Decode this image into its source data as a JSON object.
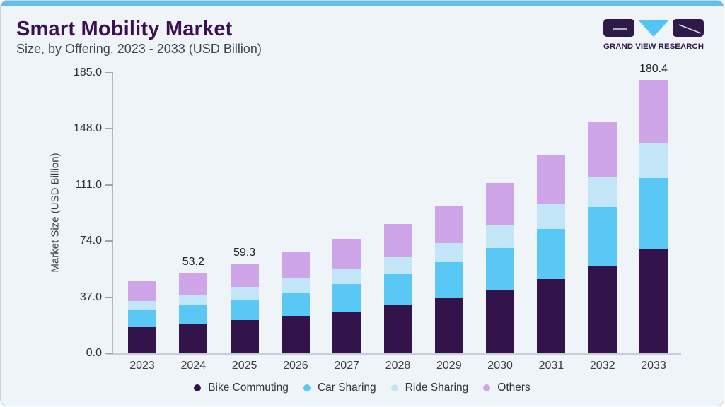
{
  "card": {
    "background": "#EFF4F9",
    "border_color": "#C9D5DF",
    "top_strip_color": "#63BEE9"
  },
  "header": {
    "title": "Smart Mobility Market",
    "subtitle": "Size, by Offering, 2023 - 2033 (USD Billion)",
    "title_color": "#3A1053"
  },
  "logo": {
    "text": "GRAND VIEW RESEARCH",
    "block_color": "#2E1A47",
    "triangle_color": "#52C5F2",
    "accent_line_color": "#D6DAE6"
  },
  "chart_data": {
    "type": "bar",
    "stacked": true,
    "title": "Smart Mobility Market Size, by Offering, 2023 - 2033 (USD Billion)",
    "ylabel": "Market Size (USD Billion)",
    "xlabel": "",
    "ylim": [
      0,
      185
    ],
    "yticks": [
      0,
      37,
      74,
      111,
      148,
      185
    ],
    "ytick_labels": [
      "0.0",
      "37.0",
      "74.0",
      "111.0",
      "148.0",
      "185.0"
    ],
    "grid": "off",
    "legend_position": "bottom",
    "categories": [
      "2023",
      "2024",
      "2025",
      "2026",
      "2027",
      "2028",
      "2029",
      "2030",
      "2031",
      "2032",
      "2033"
    ],
    "series": [
      {
        "name": "Bike Commuting",
        "color": "#32134A",
        "values": [
          17.1,
          19.5,
          21.9,
          24.8,
          27.7,
          31.5,
          36.3,
          42.0,
          49.0,
          57.7,
          68.8
        ]
      },
      {
        "name": "Car Sharing",
        "color": "#5AC8F5",
        "values": [
          11.2,
          12.4,
          13.5,
          15.4,
          17.8,
          20.7,
          23.6,
          27.6,
          32.8,
          38.9,
          46.7
        ]
      },
      {
        "name": "Ride Sharing",
        "color": "#C2E6F8",
        "values": [
          6.0,
          6.7,
          8.2,
          9.2,
          10.1,
          11.1,
          13.0,
          14.8,
          16.6,
          19.8,
          23.6
        ]
      },
      {
        "name": "Others",
        "color": "#CFA5E9",
        "values": [
          13.2,
          14.6,
          15.7,
          17.3,
          19.8,
          22.2,
          24.6,
          28.1,
          32.3,
          36.5,
          41.3
        ]
      }
    ],
    "totals": [
      47.5,
      53.2,
      59.3,
      66.7,
      75.4,
      85.5,
      97.5,
      112.5,
      130.7,
      152.9,
      180.4
    ],
    "total_labels": {
      "2024": "53.2",
      "2025": "59.3",
      "2033": "180.4"
    }
  }
}
